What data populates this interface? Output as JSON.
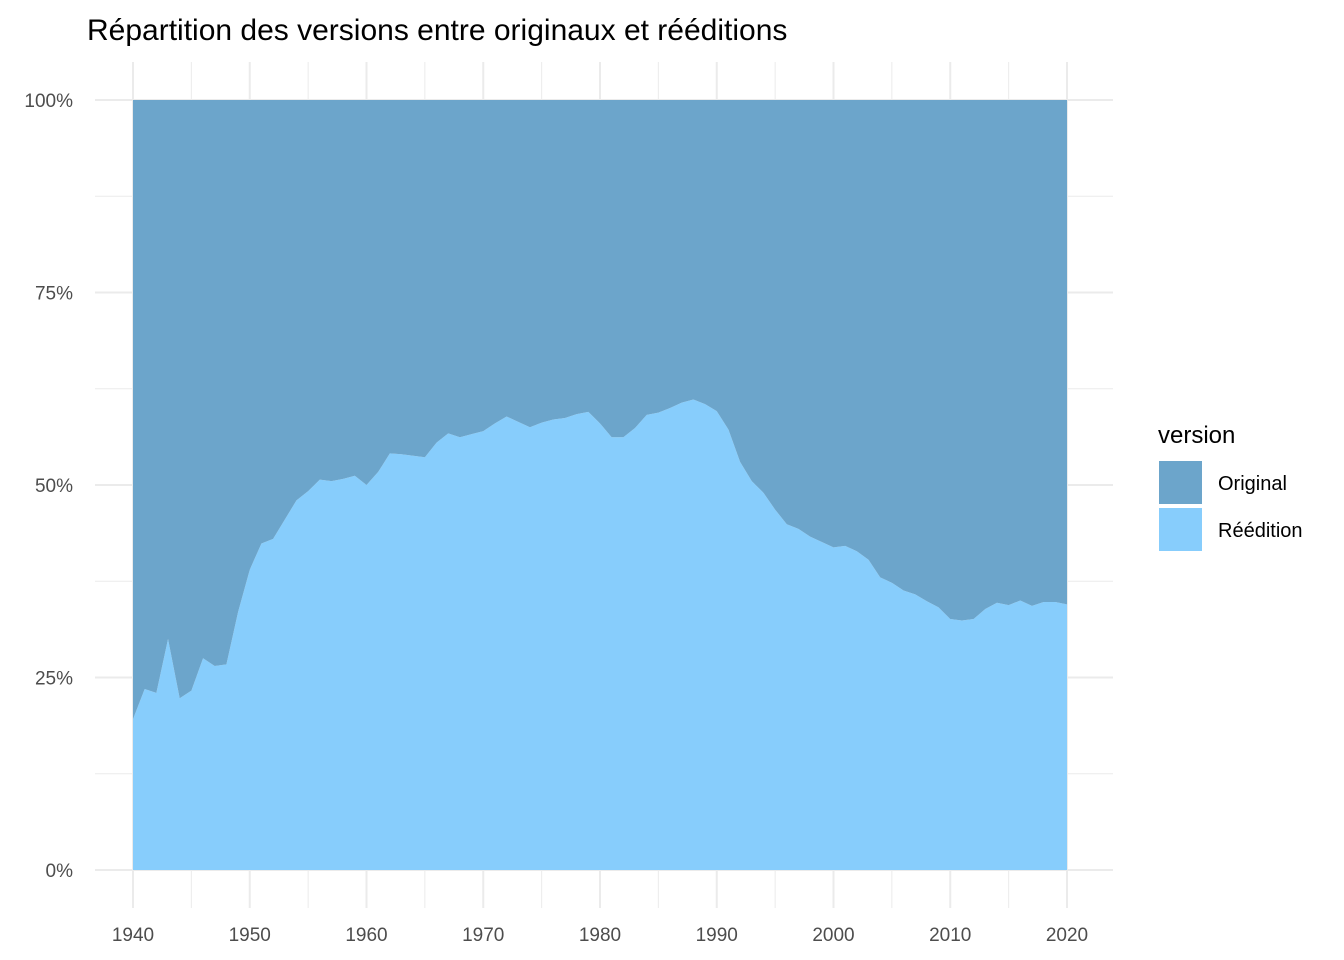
{
  "chart_data": {
    "type": "area",
    "stacked": "percent",
    "title": "Répartition des versions entre originaux et rééditions",
    "xlabel": "",
    "ylabel": "",
    "xlim": [
      1940,
      2020
    ],
    "ylim": [
      0,
      1
    ],
    "x_ticks": [
      1940,
      1950,
      1960,
      1970,
      1980,
      1990,
      2000,
      2010,
      2020
    ],
    "x_tick_labels": [
      "1940",
      "1950",
      "1960",
      "1970",
      "1980",
      "1990",
      "2000",
      "2010",
      "2020"
    ],
    "y_ticks": [
      0,
      0.25,
      0.5,
      0.75,
      1
    ],
    "y_tick_labels": [
      "0%",
      "25%",
      "50%",
      "75%",
      "100%"
    ],
    "grid": true,
    "legend_position": "right",
    "legend_title": "version",
    "colors": {
      "Original": "#6ca5cb",
      "Réédition": "#87cdfc",
      "grid": "#ebebeb",
      "tick": "#4d4d4d"
    },
    "x": [
      1940,
      1941,
      1942,
      1943,
      1944,
      1945,
      1946,
      1947,
      1948,
      1949,
      1950,
      1951,
      1952,
      1953,
      1954,
      1955,
      1956,
      1957,
      1958,
      1959,
      1960,
      1961,
      1962,
      1963,
      1964,
      1965,
      1966,
      1967,
      1968,
      1969,
      1970,
      1971,
      1972,
      1973,
      1974,
      1975,
      1976,
      1977,
      1978,
      1979,
      1980,
      1981,
      1982,
      1983,
      1984,
      1985,
      1986,
      1987,
      1988,
      1989,
      1990,
      1991,
      1992,
      1993,
      1994,
      1995,
      1996,
      1997,
      1998,
      1999,
      2000,
      2001,
      2002,
      2003,
      2004,
      2005,
      2006,
      2007,
      2008,
      2009,
      2010,
      2011,
      2012,
      2013,
      2014,
      2015,
      2016,
      2017,
      2018,
      2019,
      2020
    ],
    "series": [
      {
        "name": "Réédition",
        "values": [
          0.196,
          0.235,
          0.23,
          0.3,
          0.223,
          0.233,
          0.275,
          0.265,
          0.267,
          0.335,
          0.39,
          0.424,
          0.43,
          0.455,
          0.48,
          0.492,
          0.507,
          0.505,
          0.508,
          0.512,
          0.5,
          0.517,
          0.541,
          0.54,
          0.538,
          0.536,
          0.555,
          0.567,
          0.562,
          0.566,
          0.57,
          0.58,
          0.589,
          0.582,
          0.575,
          0.581,
          0.585,
          0.587,
          0.592,
          0.595,
          0.58,
          0.562,
          0.562,
          0.574,
          0.591,
          0.594,
          0.6,
          0.607,
          0.611,
          0.605,
          0.596,
          0.572,
          0.53,
          0.505,
          0.49,
          0.468,
          0.449,
          0.443,
          0.433,
          0.426,
          0.419,
          0.421,
          0.414,
          0.403,
          0.38,
          0.373,
          0.363,
          0.358,
          0.349,
          0.341,
          0.326,
          0.324,
          0.326,
          0.339,
          0.347,
          0.344,
          0.35,
          0.343,
          0.348,
          0.348,
          0.345
        ]
      },
      {
        "name": "Original",
        "values": [
          0.804,
          0.765,
          0.77,
          0.7,
          0.777,
          0.767,
          0.725,
          0.735,
          0.733,
          0.665,
          0.61,
          0.576,
          0.57,
          0.545,
          0.52,
          0.508,
          0.493,
          0.495,
          0.492,
          0.488,
          0.5,
          0.483,
          0.459,
          0.46,
          0.462,
          0.464,
          0.445,
          0.433,
          0.438,
          0.434,
          0.43,
          0.42,
          0.411,
          0.418,
          0.425,
          0.419,
          0.415,
          0.413,
          0.408,
          0.405,
          0.42,
          0.438,
          0.438,
          0.426,
          0.409,
          0.406,
          0.4,
          0.393,
          0.389,
          0.395,
          0.404,
          0.428,
          0.47,
          0.495,
          0.51,
          0.532,
          0.551,
          0.557,
          0.567,
          0.574,
          0.581,
          0.579,
          0.586,
          0.597,
          0.62,
          0.627,
          0.637,
          0.642,
          0.651,
          0.659,
          0.674,
          0.676,
          0.674,
          0.661,
          0.653,
          0.656,
          0.65,
          0.657,
          0.652,
          0.652,
          0.655
        ]
      }
    ],
    "legend": [
      {
        "label": "Original",
        "color": "#6ca5cb"
      },
      {
        "label": "Réédition",
        "color": "#87cdfc"
      }
    ]
  }
}
